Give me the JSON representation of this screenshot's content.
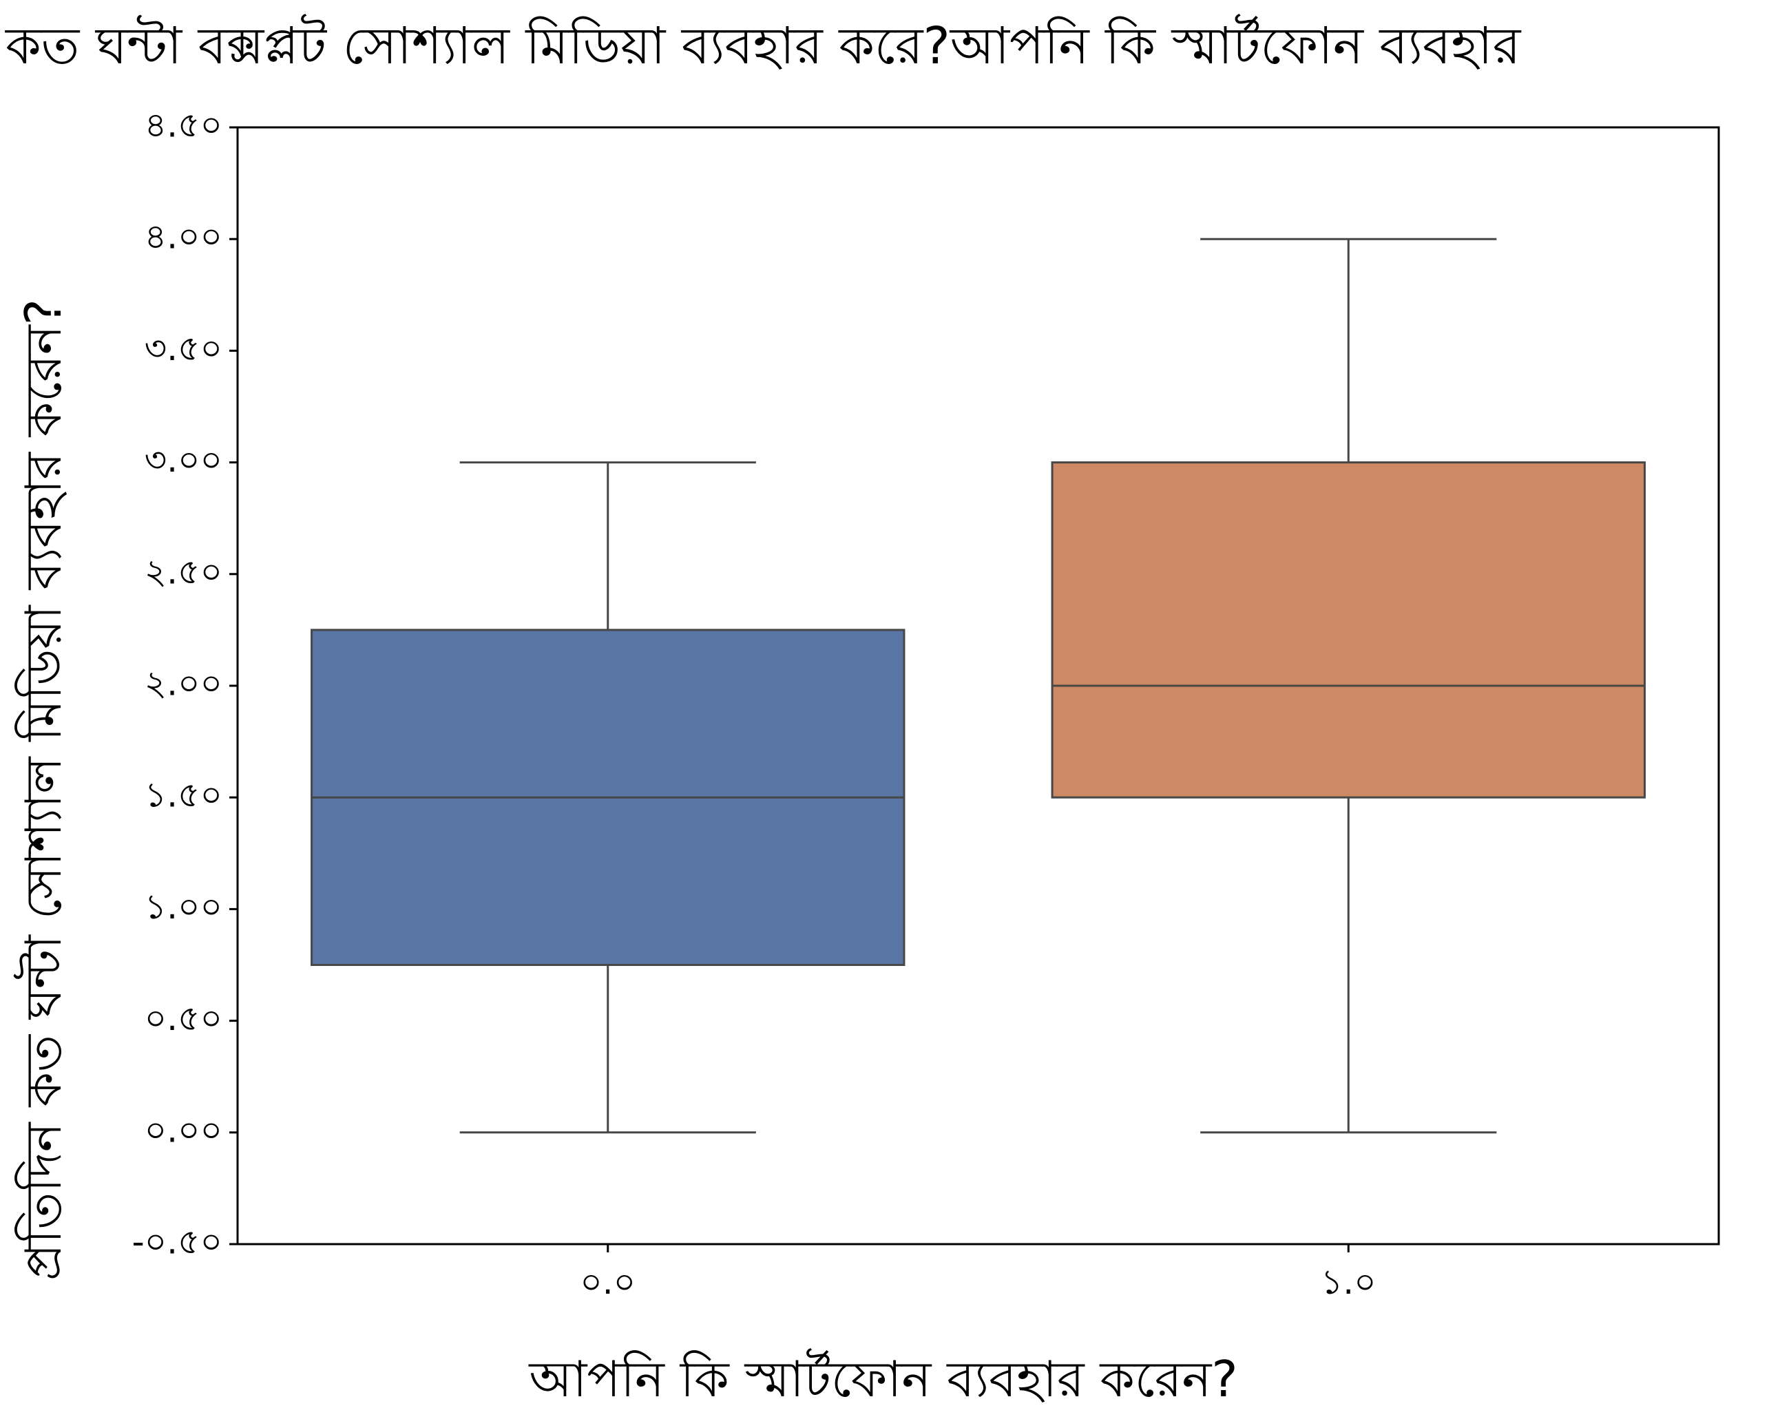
{
  "chart_data": {
    "type": "box",
    "title": "কত ঘন্টা বক্সপ্লট সোশ্যাল মিডিয়া ব্যবহার করে?আপনি কি স্মার্টফোন ব্যবহার",
    "xlabel": "আপনি কি স্মার্টফোন ব্যবহার করেন?",
    "ylabel": "প্রতিদিন কত ঘন্টা সোশ্যাল মিডিয়া ব্যবহার করেন?",
    "categories": [
      "০.০",
      "১.০"
    ],
    "boxes": [
      {
        "category": "০.০",
        "whisker_low": 0.0,
        "q1": 0.75,
        "median": 1.5,
        "q3": 2.25,
        "whisker_high": 3.0,
        "color": "#5975a4"
      },
      {
        "category": "১.০",
        "whisker_low": 0.0,
        "q1": 1.5,
        "median": 2.0,
        "q3": 3.0,
        "whisker_high": 4.0,
        "color": "#cc8963"
      }
    ],
    "ylim": [
      -0.5,
      4.5
    ],
    "y_ticks": [
      -0.5,
      0.0,
      0.5,
      1.0,
      1.5,
      2.0,
      2.5,
      3.0,
      3.5,
      4.0,
      4.5
    ],
    "y_tick_labels": [
      "-০.৫০",
      "০.০০",
      "০.৫০",
      "১.০০",
      "১.৫০",
      "২.০০",
      "২.৫০",
      "৩.০০",
      "৩.৫০",
      "৪.০০",
      "৪.৫০"
    ],
    "grid": false,
    "legend": "none",
    "line_color": "#474747"
  }
}
